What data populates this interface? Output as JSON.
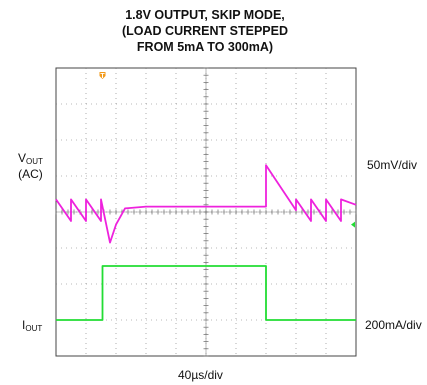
{
  "chart_data": {
    "type": "line",
    "title_lines": [
      "1.8V OUTPUT, SKIP MODE,",
      "(LOAD CURRENT STEPPED",
      "FROM 5mA TO 300mA)"
    ],
    "xlabel": "40µs/div",
    "x_divisions": 10,
    "y_divisions": 8,
    "grid": true,
    "trigger_marker": "T",
    "channels": [
      {
        "name_main": "V",
        "name_sub": "OUT",
        "coupling": "(AC)",
        "scale_label": "50mV/div",
        "color": "#ee22dd",
        "waveform_div": {
          "x": [
            0,
            0.5,
            0.5,
            1.0,
            1.0,
            1.5,
            1.5,
            1.8,
            2.0,
            2.3,
            3.0,
            5.0,
            7.0,
            7.0,
            8.0,
            8.0,
            8.5,
            8.5,
            9.0,
            9.0,
            9.5,
            9.5,
            10.0
          ],
          "y": [
            0.35,
            -0.25,
            0.35,
            -0.25,
            0.35,
            -0.25,
            0.35,
            -0.85,
            -0.35,
            0.1,
            0.15,
            0.15,
            0.15,
            1.3,
            0.05,
            0.35,
            -0.25,
            0.35,
            -0.25,
            0.35,
            -0.25,
            0.35,
            0.2
          ]
        }
      },
      {
        "name_main": "I",
        "name_sub": "OUT",
        "scale_label": "200mA/div",
        "color": "#22dd33",
        "waveform_div": {
          "x": [
            0,
            1.55,
            1.55,
            5.0,
            7.0,
            7.0,
            10.0
          ],
          "y": [
            -3.0,
            -3.0,
            -1.5,
            -1.5,
            -1.5,
            -3.0,
            -3.0
          ]
        }
      }
    ]
  }
}
